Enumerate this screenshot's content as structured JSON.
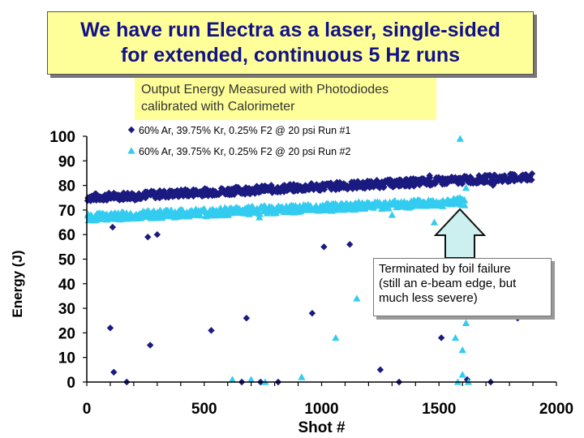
{
  "header": {
    "title": "We have run Electra as a laser, single-sided\nfor extended, continuous 5 Hz runs"
  },
  "subtitle_box": {
    "text": "Output Energy Measured with Photodiodes\ncalibrated with Calorimeter"
  },
  "annotation": {
    "text": "Terminated by foil failure\n(still an e-beam edge, but\nmuch less severe)"
  },
  "colors": {
    "title_bg": "#ffff99",
    "title_text": "#111188",
    "series1": "#1a1a80",
    "series2": "#33ccf0",
    "arrow_fill": "#ccf0f0"
  },
  "chart_data": {
    "type": "scatter",
    "title": "Output Energy Measured with Photodiodes calibrated with Calorimeter",
    "xlabel": "Shot #",
    "ylabel": "Energy (J)",
    "xlim": [
      0,
      2000
    ],
    "ylim": [
      0,
      100
    ],
    "x_ticks": [
      "0",
      "500",
      "1000",
      "1500",
      "2000"
    ],
    "y_ticks": [
      "0",
      "10",
      "20",
      "30",
      "40",
      "50",
      "60",
      "70",
      "80",
      "90",
      "100"
    ],
    "legend_position": "top-center",
    "series": [
      {
        "name": "60% Ar, 39.75% Kr, 0.25% F2 @ 20 psi Run #1",
        "marker": "diamond",
        "color": "#1a1a80",
        "trend": {
          "x_start": 0,
          "x_end": 1900,
          "y_start": 75,
          "y_end": 83.5
        },
        "points": [
          [
            100,
            22
          ],
          [
            110,
            63
          ],
          [
            115,
            4
          ],
          [
            170,
            0
          ],
          [
            205,
            74
          ],
          [
            260,
            59
          ],
          [
            270,
            15
          ],
          [
            300,
            60
          ],
          [
            530,
            21
          ],
          [
            660,
            0
          ],
          [
            680,
            26
          ],
          [
            740,
            0
          ],
          [
            815,
            0
          ],
          [
            960,
            28
          ],
          [
            1010,
            55
          ],
          [
            1120,
            56
          ],
          [
            1250,
            5
          ],
          [
            1330,
            0
          ],
          [
            1510,
            18
          ],
          [
            1620,
            1
          ],
          [
            1720,
            0
          ],
          [
            1730,
            80
          ],
          [
            1835,
            26
          ],
          [
            1340,
            81
          ],
          [
            1460,
            84
          ],
          [
            1700,
            84
          ]
        ]
      },
      {
        "name": "60% Ar, 39.75% Kr, 0.25% F2 @ 20 psi Run #2",
        "marker": "triangle",
        "color": "#33ccf0",
        "trend": {
          "x_start": 0,
          "x_end": 1610,
          "y_start": 67,
          "y_end": 73.5
        },
        "points": [
          [
            620,
            1
          ],
          [
            700,
            1
          ],
          [
            735,
            67
          ],
          [
            760,
            0
          ],
          [
            915,
            2
          ],
          [
            1060,
            18
          ],
          [
            1150,
            34
          ],
          [
            1300,
            68
          ],
          [
            1480,
            65
          ],
          [
            1570,
            18
          ],
          [
            1580,
            0
          ],
          [
            1590,
            99
          ],
          [
            1600,
            13
          ],
          [
            1600,
            3
          ],
          [
            1615,
            24
          ],
          [
            1615,
            79
          ],
          [
            1625,
            0
          ]
        ]
      }
    ]
  }
}
